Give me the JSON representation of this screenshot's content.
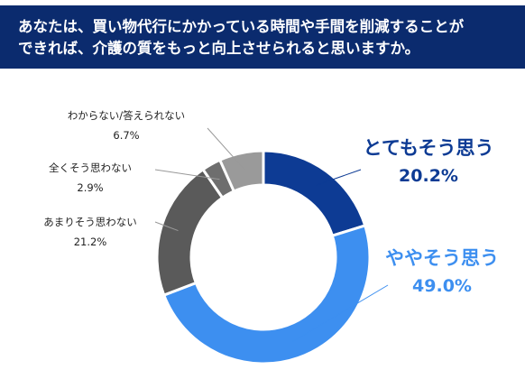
{
  "header": {
    "line1": "あなたは、買い物代行にかかっている時間や手間を削減することが",
    "line2": "できれば、介護の質をもっと向上させられると思いますか。"
  },
  "chart_data": {
    "type": "pie",
    "donut": true,
    "title": "",
    "categories": [
      "とてもそう思う",
      "ややそう思う",
      "あまりそう思わない",
      "全くそう思わない",
      "わからない/答えられない"
    ],
    "values": [
      20.2,
      49.0,
      21.2,
      2.9,
      6.7
    ],
    "value_labels": [
      "20.2%",
      "49.0%",
      "21.2%",
      "2.9%",
      "6.7%"
    ],
    "colors": [
      "#0d3b94",
      "#3d8ff0",
      "#5a5a5a",
      "#6e6e6e",
      "#9a9a9a"
    ],
    "label_colors": [
      "#0d3b94",
      "#3d8ff0",
      "#222222",
      "#222222",
      "#222222"
    ],
    "start": "12 o'clock, clockwise"
  }
}
